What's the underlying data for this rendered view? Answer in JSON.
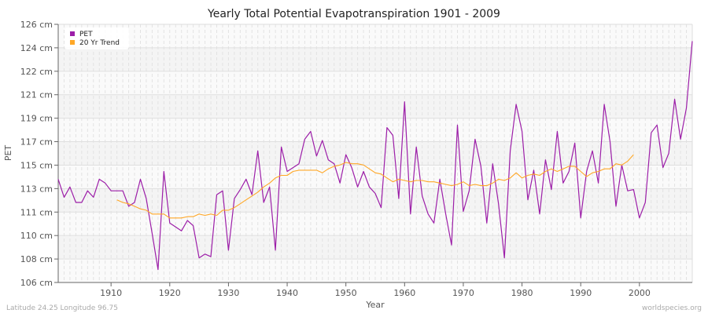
{
  "chart_data": {
    "type": "line",
    "title": "Yearly Total Potential Evapotranspiration 1901 - 2009",
    "xlabel": "Year",
    "ylabel": "PET",
    "xlim": [
      1901,
      2009
    ],
    "ylim": [
      106,
      126
    ],
    "x_ticks": [
      1910,
      1920,
      1930,
      1940,
      1950,
      1960,
      1970,
      1980,
      1990,
      2000
    ],
    "y_tick_labels": [
      "106 cm",
      "108 cm",
      "110 cm",
      "111 cm",
      "113 cm",
      "115 cm",
      "117 cm",
      "119 cm",
      "121 cm",
      "122 cm",
      "124 cm",
      "126 cm"
    ],
    "grid": true,
    "legend_placement": "top-left",
    "series": [
      {
        "name": "PET",
        "color": "#9c1ea8",
        "x_start": 1901,
        "values": [
          114.0,
          112.6,
          113.4,
          112.2,
          112.2,
          113.1,
          112.6,
          114.0,
          113.7,
          113.1,
          113.1,
          113.1,
          111.9,
          112.2,
          114.0,
          112.5,
          109.8,
          107.0,
          114.6,
          110.6,
          110.3,
          110.0,
          110.8,
          110.4,
          107.9,
          108.2,
          108.0,
          112.8,
          113.1,
          108.5,
          112.5,
          113.2,
          114.0,
          112.8,
          116.2,
          112.2,
          113.4,
          108.5,
          116.5,
          114.6,
          114.9,
          115.2,
          117.1,
          117.7,
          115.8,
          117.0,
          115.5,
          115.2,
          113.7,
          115.9,
          114.9,
          113.4,
          114.6,
          113.4,
          112.9,
          111.8,
          118.0,
          117.4,
          112.5,
          120.0,
          111.3,
          116.5,
          112.7,
          111.3,
          110.6,
          114.0,
          111.3,
          108.9,
          118.2,
          111.5,
          113.1,
          117.1,
          115.0,
          110.6,
          115.2,
          112.1,
          107.9,
          116.2,
          119.8,
          117.7,
          112.4,
          114.7,
          111.3,
          115.5,
          113.2,
          117.7,
          113.7,
          114.6,
          116.8,
          111.0,
          114.6,
          116.2,
          113.7,
          119.8,
          116.9,
          111.9,
          115.1,
          113.1,
          113.2,
          111.0,
          112.2,
          117.6,
          118.2,
          114.9,
          116.0,
          120.2,
          117.1,
          119.5,
          124.7
        ]
      },
      {
        "name": "20 Yr Trend",
        "color": "#ffa726",
        "x_start": 1911,
        "values": [
          112.4,
          112.2,
          112.1,
          111.9,
          111.7,
          111.6,
          111.3,
          111.3,
          111.3,
          111.0,
          111.0,
          111.0,
          111.1,
          111.1,
          111.3,
          111.2,
          111.3,
          111.2,
          111.6,
          111.6,
          111.8,
          112.1,
          112.4,
          112.7,
          113.0,
          113.4,
          113.7,
          114.1,
          114.3,
          114.3,
          114.6,
          114.7,
          114.7,
          114.7,
          114.7,
          114.5,
          114.8,
          115.0,
          115.1,
          115.3,
          115.2,
          115.2,
          115.1,
          114.8,
          114.5,
          114.4,
          114.1,
          113.8,
          114.0,
          113.9,
          113.8,
          113.9,
          113.9,
          113.8,
          113.8,
          113.7,
          113.6,
          113.5,
          113.6,
          113.8,
          113.5,
          113.6,
          113.5,
          113.5,
          113.7,
          114.0,
          113.9,
          114.1,
          114.5,
          114.1,
          114.3,
          114.4,
          114.3,
          114.6,
          114.8,
          114.6,
          114.8,
          115.0,
          115.0,
          114.6,
          114.2,
          114.5,
          114.6,
          114.8,
          114.8,
          115.2,
          115.1,
          115.4,
          115.9
        ]
      }
    ]
  },
  "footer": {
    "location": "Latitude 24.25 Longitude 96.75",
    "source": "worldspecies.org"
  }
}
